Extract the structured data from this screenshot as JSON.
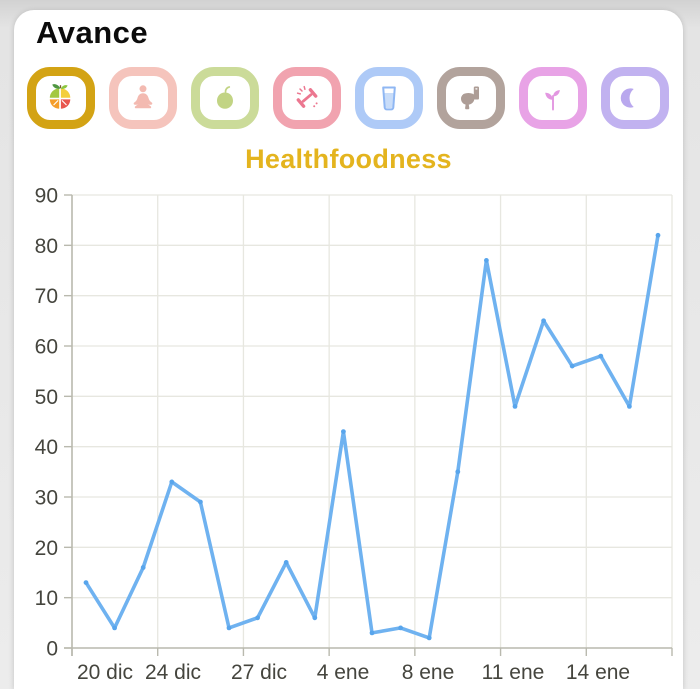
{
  "header": {
    "title": "Avance"
  },
  "categories_bar": {
    "items": [
      {
        "name": "fruit",
        "ring_color": "#D3A314",
        "glyph_color": "#D3A314",
        "selected": true
      },
      {
        "name": "meditation",
        "ring_color": "#F5C4BC",
        "glyph_color": "#F3BAB1",
        "selected": false
      },
      {
        "name": "apple",
        "ring_color": "#CBDB99",
        "glyph_color": "#C2D484",
        "selected": false
      },
      {
        "name": "dumbbell",
        "ring_color": "#F1A3AF",
        "glyph_color": "#EC7790",
        "selected": false
      },
      {
        "name": "water",
        "ring_color": "#AECAF7",
        "glyph_color": "#8FB7F3",
        "selected": false
      },
      {
        "name": "toilet",
        "ring_color": "#B2A39C",
        "glyph_color": "#AD9D96",
        "selected": false
      },
      {
        "name": "plant",
        "ring_color": "#E8A3E6",
        "glyph_color": "#E397E1",
        "selected": false
      },
      {
        "name": "moon",
        "ring_color": "#C1B2F0",
        "glyph_color": "#B9A8EE",
        "selected": false
      }
    ],
    "icon_colors": {
      "lime": "#A3C840",
      "lemon": "#F3CE3B",
      "orange": "#F59E2B",
      "grapefruit": "#E8564E",
      "leaf_dark": "#4E9642",
      "leaf_light": "#8CC63F",
      "water_fill": "#C9DDF9"
    }
  },
  "chart_data": {
    "type": "line",
    "title": "Healthfoodness",
    "title_color": "#E4B41E",
    "line_color": "#6FB2F0",
    "point_color": "#58A5EC",
    "axis_color": "#B9B9AE",
    "grid_color": "#E7E7E0",
    "tick_label_color": "#45453E",
    "grid": true,
    "legend": "none",
    "x_tick_labels": [
      "20 dic",
      "24 dic",
      "27 dic",
      "4 ene",
      "8 ene",
      "11 ene",
      "14 ene"
    ],
    "y_ticks": [
      0,
      10,
      20,
      30,
      40,
      50,
      60,
      70,
      80,
      90
    ],
    "ylim": [
      0,
      90
    ],
    "values": [
      13,
      4,
      16,
      33,
      29,
      4,
      6,
      17,
      6,
      43,
      3,
      4,
      2,
      35,
      77,
      48,
      65,
      56,
      58,
      48,
      82
    ]
  }
}
